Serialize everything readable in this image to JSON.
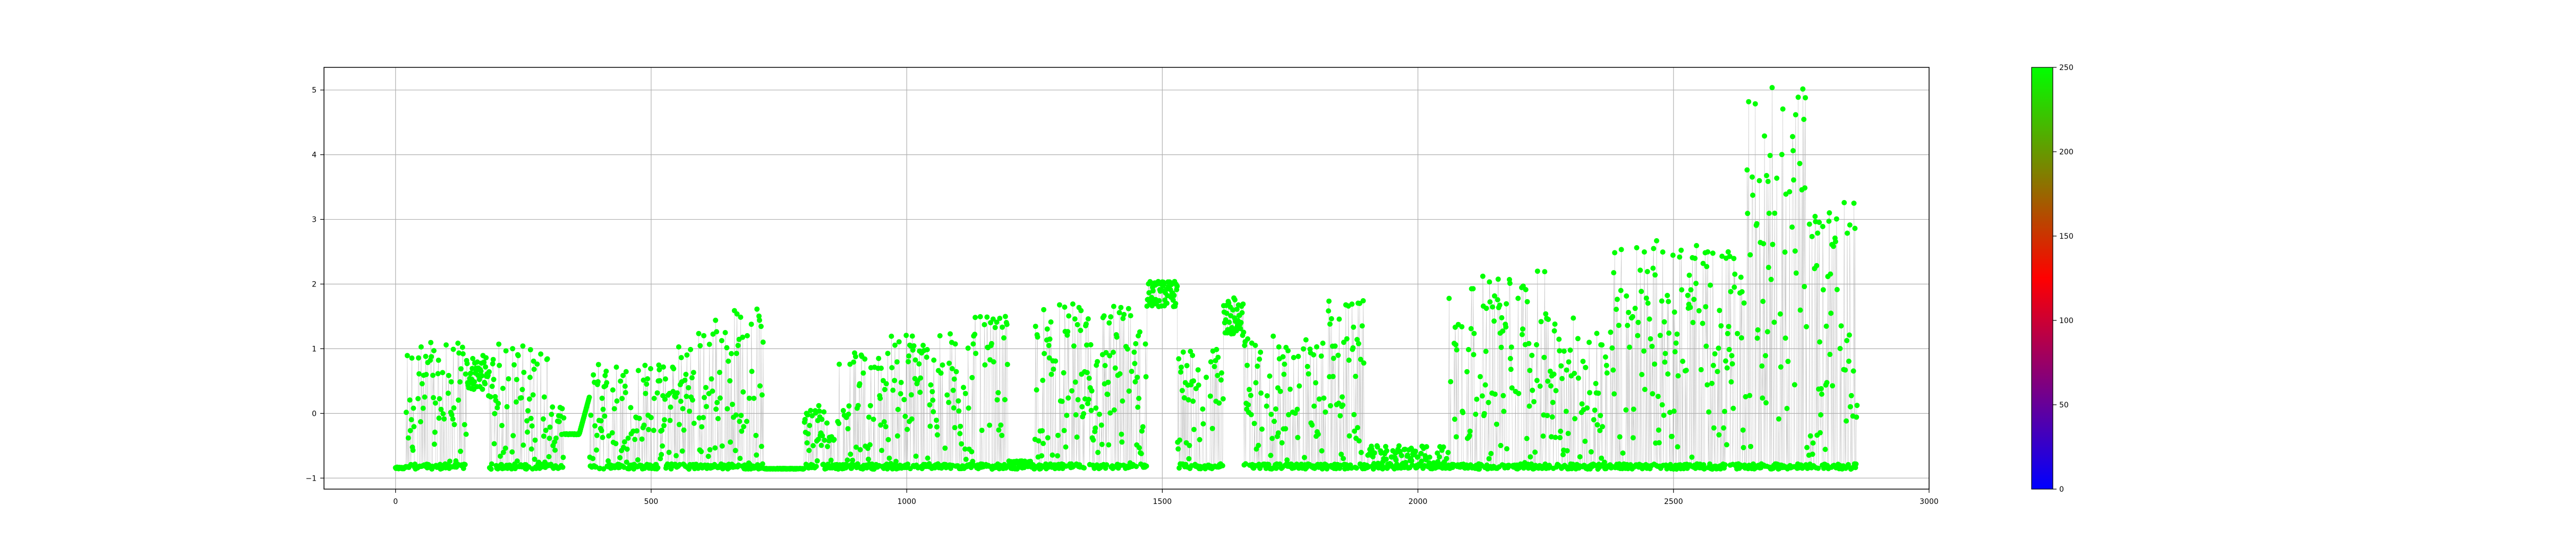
{
  "chart_data": {
    "type": "scatter",
    "title": "",
    "xlabel": "",
    "ylabel": "",
    "xlim": [
      -140,
      3000
    ],
    "ylim": [
      -1.17,
      5.35
    ],
    "x_ticks": [
      0,
      500,
      1000,
      1500,
      2000,
      2500,
      3000
    ],
    "y_ticks": [
      -1,
      0,
      1,
      2,
      3,
      4,
      5
    ],
    "grid": true,
    "marker_color": "#00ff00",
    "line_color": "#b0b0b0",
    "colorbar": {
      "range": [
        0,
        250
      ],
      "ticks": [
        0,
        50,
        100,
        150,
        200,
        250
      ],
      "colors": [
        "#0000ff",
        "#ff0000",
        "#00ff00"
      ]
    },
    "point_count": 2860,
    "segments": [
      {
        "start": 0,
        "end": 20,
        "base": -0.86,
        "peak": -0.8,
        "mode": "flat"
      },
      {
        "start": 20,
        "end": 140,
        "base": -0.86,
        "peak": 1.1,
        "mode": "spiky"
      },
      {
        "start": 140,
        "end": 180,
        "base": 0.35,
        "peak": 0.9,
        "mode": "cluster"
      },
      {
        "start": 180,
        "end": 300,
        "base": -0.86,
        "peak": 1.1,
        "mode": "spiky"
      },
      {
        "start": 300,
        "end": 330,
        "base": -0.86,
        "peak": 0.1,
        "mode": "spiky"
      },
      {
        "start": 330,
        "end": 360,
        "base": -0.33,
        "peak": -0.3,
        "mode": "flat"
      },
      {
        "start": 360,
        "end": 380,
        "base": -0.3,
        "peak": 0.25,
        "mode": "ramp"
      },
      {
        "start": 380,
        "end": 540,
        "base": -0.86,
        "peak": 0.8,
        "mode": "spiky"
      },
      {
        "start": 540,
        "end": 620,
        "base": -0.86,
        "peak": 1.3,
        "mode": "spiky"
      },
      {
        "start": 620,
        "end": 720,
        "base": -0.86,
        "peak": 1.65,
        "mode": "spiky"
      },
      {
        "start": 720,
        "end": 800,
        "base": -0.86,
        "peak": -0.84,
        "mode": "flat"
      },
      {
        "start": 800,
        "end": 860,
        "base": -0.86,
        "peak": 0.2,
        "mode": "spiky"
      },
      {
        "start": 860,
        "end": 960,
        "base": -0.86,
        "peak": 0.95,
        "mode": "spiky"
      },
      {
        "start": 960,
        "end": 1130,
        "base": -0.86,
        "peak": 1.3,
        "mode": "spiky"
      },
      {
        "start": 1130,
        "end": 1200,
        "base": -0.86,
        "peak": 1.5,
        "mode": "spiky"
      },
      {
        "start": 1200,
        "end": 1250,
        "base": -0.86,
        "peak": -0.6,
        "mode": "flat"
      },
      {
        "start": 1250,
        "end": 1470,
        "base": -0.86,
        "peak": 1.7,
        "mode": "spiky"
      },
      {
        "start": 1470,
        "end": 1530,
        "base": 1.65,
        "peak": 2.05,
        "mode": "cluster"
      },
      {
        "start": 1530,
        "end": 1620,
        "base": -0.86,
        "peak": 1.0,
        "mode": "spiky"
      },
      {
        "start": 1620,
        "end": 1660,
        "base": 1.2,
        "peak": 1.8,
        "mode": "cluster"
      },
      {
        "start": 1660,
        "end": 1820,
        "base": -0.86,
        "peak": 1.2,
        "mode": "spiky"
      },
      {
        "start": 1820,
        "end": 1900,
        "base": -0.86,
        "peak": 1.75,
        "mode": "spiky"
      },
      {
        "start": 1900,
        "end": 2060,
        "base": -0.86,
        "peak": -0.5,
        "mode": "spiky"
      },
      {
        "start": 2060,
        "end": 2150,
        "base": -0.86,
        "peak": 2.15,
        "mode": "spiky"
      },
      {
        "start": 2150,
        "end": 2260,
        "base": -0.86,
        "peak": 2.2,
        "mode": "spiky"
      },
      {
        "start": 2260,
        "end": 2380,
        "base": -0.86,
        "peak": 1.5,
        "mode": "spiky"
      },
      {
        "start": 2380,
        "end": 2520,
        "base": -0.86,
        "peak": 2.7,
        "mode": "spiky"
      },
      {
        "start": 2520,
        "end": 2640,
        "base": -0.86,
        "peak": 2.6,
        "mode": "spiky"
      },
      {
        "start": 2640,
        "end": 2760,
        "base": -0.86,
        "peak": 5.05,
        "mode": "spiky"
      },
      {
        "start": 2760,
        "end": 2860,
        "base": -0.86,
        "peak": 3.3,
        "mode": "spiky"
      }
    ]
  }
}
